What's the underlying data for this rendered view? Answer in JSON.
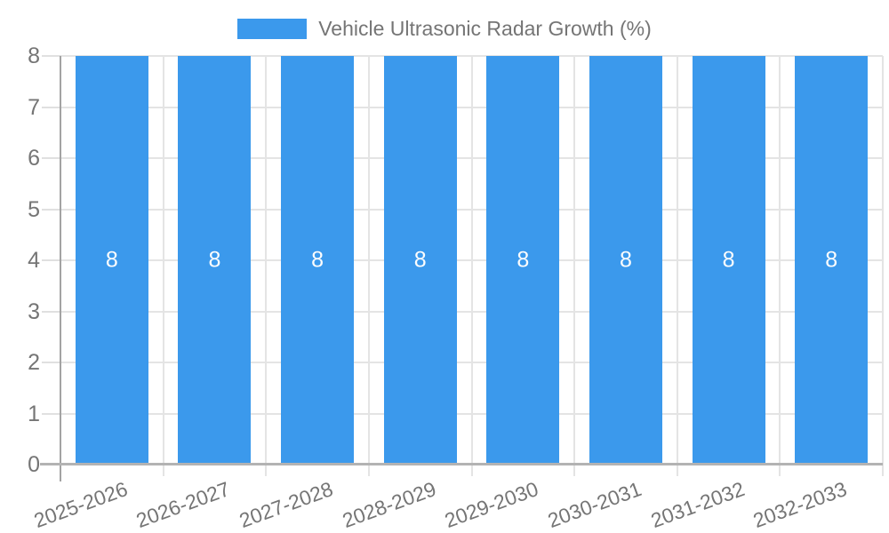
{
  "legend": {
    "label": "Vehicle Ultrasonic Radar Growth (%)"
  },
  "chart_data": {
    "type": "bar",
    "title": "Vehicle Ultrasonic Radar Growth (%)",
    "categories": [
      "2025-2026",
      "2026-2027",
      "2027-2028",
      "2028-2029",
      "2029-2030",
      "2030-2031",
      "2031-2032",
      "2032-2033"
    ],
    "series": [
      {
        "name": "Vehicle Ultrasonic Radar Growth (%)",
        "values": [
          8,
          8,
          8,
          8,
          8,
          8,
          8,
          8
        ]
      }
    ],
    "bar_value_labels": [
      "8",
      "8",
      "8",
      "8",
      "8",
      "8",
      "8",
      "8"
    ],
    "xlabel": "",
    "ylabel": "",
    "ylim": [
      0,
      8
    ],
    "yticks": [
      0,
      1,
      2,
      3,
      4,
      5,
      6,
      7,
      8
    ],
    "grid": true,
    "legend_position": "top-center",
    "x_label_rotation_deg": -20,
    "colors": {
      "bar": "#3B99EC",
      "axis_label_text": "#757575",
      "gridline": "#E4E4E4",
      "y_axis_line": "#A3A3A3",
      "x_axis_line": "#B3B3B3",
      "bar_value_label": "#FDFDFD"
    }
  }
}
